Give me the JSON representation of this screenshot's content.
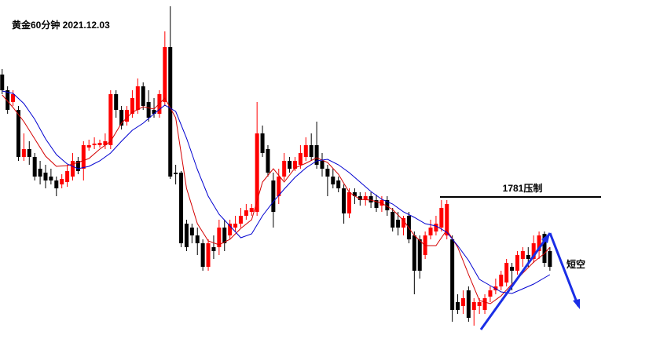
{
  "chart_data": {
    "type": "candlestick",
    "title": "黄金60分钟 2021.12.03",
    "xlim": [
      -0.4,
      121.3
    ],
    "ylim": [
      1762.9,
      1806.1
    ],
    "up_color": "#ff0000",
    "down_color": "#000000",
    "open": [
      1796.6,
      1794.6,
      1793.1,
      1792.1,
      1786.1,
      1787.1,
      1786.1,
      1784.6,
      1784.1,
      1783.6,
      1783.1,
      1782.6,
      1782.9,
      1783.6,
      1785.6,
      1784.6,
      1787.3,
      1787.6,
      1787.6,
      1787.6,
      1787.6,
      1794.1,
      1792.1,
      1790.6,
      1791.6,
      1792.1,
      1795.1,
      1793.1,
      1792.1,
      1791.6,
      1793.1,
      1800.1,
      1784.1,
      1784.1,
      1777.6,
      1777.1,
      1776.1,
      1775.1,
      1772.1,
      1774.6,
      1774.6,
      1777.1,
      1776.1,
      1777.1,
      1777.6,
      1778.6,
      1779.1,
      1779.1,
      1789.1,
      1787.1,
      1783.1,
      1781.1,
      1783.6,
      1785.6,
      1784.6,
      1785.1,
      1786.1,
      1787.6,
      1787.6,
      1785.6,
      1784.6,
      1783.6,
      1783.1,
      1782.1,
      1778.9,
      1781.6,
      1781.1,
      1780.6,
      1781.1,
      1780.6,
      1779.9,
      1780.6,
      1779.1,
      1778.1,
      1777.1,
      1778.6,
      1776.1,
      1775.6,
      1773.6,
      1776.1,
      1776.6,
      1777.1,
      1776.1,
      1775.6,
      1767.6,
      1767.1,
      1769.1,
      1766.6,
      1767.1,
      1766.6,
      1768.3,
      1769.1,
      1769.6,
      1770.1,
      1772.1,
      1771.6,
      1773.1,
      1773.6,
      1773.1,
      1774.1,
      1776.3,
      1774.1
    ],
    "high": [
      1797.3,
      1795.1,
      1794.6,
      1792.6,
      1789.1,
      1788.1,
      1786.6,
      1785.6,
      1785.1,
      1784.6,
      1783.6,
      1783.9,
      1785.1,
      1786.6,
      1786.1,
      1788.1,
      1788.3,
      1788.6,
      1788.3,
      1789.1,
      1794.6,
      1794.6,
      1792.6,
      1792.6,
      1794.6,
      1796.1,
      1795.6,
      1794.6,
      1793.6,
      1794.6,
      1802.1,
      1805.3,
      1785.1,
      1784.3,
      1778.1,
      1777.6,
      1777.1,
      1775.6,
      1775.6,
      1776.1,
      1778.1,
      1778.1,
      1778.1,
      1778.6,
      1779.6,
      1780.1,
      1780.1,
      1793.1,
      1790.1,
      1787.6,
      1784.1,
      1784.6,
      1786.6,
      1786.1,
      1786.1,
      1787.6,
      1788.6,
      1789.1,
      1790.6,
      1786.6,
      1785.1,
      1784.6,
      1783.6,
      1782.6,
      1782.1,
      1782.1,
      1781.6,
      1781.6,
      1781.6,
      1781.3,
      1781.1,
      1781.1,
      1779.6,
      1779.1,
      1778.6,
      1779.1,
      1776.6,
      1776.1,
      1776.6,
      1778.1,
      1778.6,
      1780.6,
      1780.6,
      1776.1,
      1768.6,
      1769.1,
      1769.6,
      1768.1,
      1768.1,
      1768.6,
      1769.6,
      1770.6,
      1771.6,
      1773.1,
      1772.6,
      1774.1,
      1774.6,
      1774.6,
      1776.1,
      1776.6,
      1776.6,
      1774.6
    ],
    "low": [
      1794.1,
      1791.6,
      1792.6,
      1785.6,
      1785.6,
      1785.1,
      1783.1,
      1782.6,
      1782.1,
      1782.6,
      1781.1,
      1782.1,
      1782.3,
      1783.1,
      1783.9,
      1783.1,
      1786.9,
      1787.1,
      1787.3,
      1787.1,
      1787.1,
      1791.1,
      1789.6,
      1790.1,
      1791.1,
      1791.6,
      1792.1,
      1790.6,
      1791.1,
      1791.1,
      1792.6,
      1783.3,
      1782.6,
      1774.6,
      1774.1,
      1775.1,
      1773.6,
      1771.6,
      1771.6,
      1773.1,
      1773.6,
      1774.1,
      1775.6,
      1776.6,
      1777.1,
      1778.1,
      1778.6,
      1778.6,
      1786.1,
      1783.6,
      1777.1,
      1780.1,
      1783.1,
      1784.1,
      1784.3,
      1784.6,
      1785.6,
      1785.6,
      1784.6,
      1783.6,
      1781.1,
      1782.1,
      1781.6,
      1777.6,
      1778.3,
      1780.1,
      1779.9,
      1779.9,
      1779.6,
      1779.1,
      1779.1,
      1778.6,
      1776.6,
      1776.1,
      1776.1,
      1775.1,
      1768.6,
      1770.6,
      1773.1,
      1775.6,
      1776.1,
      1776.6,
      1775.6,
      1765.1,
      1766.1,
      1766.1,
      1765.1,
      1764.6,
      1766.1,
      1766.1,
      1767.6,
      1768.6,
      1769.1,
      1769.6,
      1769.1,
      1771.1,
      1772.1,
      1772.1,
      1772.6,
      1773.1,
      1772.1,
      1771.6
    ],
    "close": [
      1794.6,
      1792.1,
      1794.1,
      1786.1,
      1787.1,
      1786.1,
      1783.6,
      1783.6,
      1783.1,
      1783.1,
      1782.1,
      1783.3,
      1784.3,
      1785.6,
      1784.3,
      1787.6,
      1787.6,
      1787.8,
      1787.9,
      1788.1,
      1794.1,
      1792.1,
      1790.1,
      1792.1,
      1793.6,
      1795.1,
      1792.6,
      1791.1,
      1791.6,
      1794.1,
      1800.1,
      1783.6,
      1783.9,
      1775.1,
      1774.6,
      1776.1,
      1775.1,
      1772.1,
      1775.1,
      1774.1,
      1777.1,
      1775.1,
      1777.6,
      1777.6,
      1778.6,
      1779.3,
      1779.6,
      1789.1,
      1786.6,
      1784.1,
      1779.1,
      1783.6,
      1785.6,
      1784.6,
      1785.6,
      1786.6,
      1787.6,
      1786.1,
      1785.1,
      1784.6,
      1783.6,
      1782.6,
      1782.1,
      1778.9,
      1781.6,
      1781.1,
      1780.6,
      1781.1,
      1780.3,
      1779.6,
      1780.6,
      1779.3,
      1777.1,
      1777.1,
      1778.3,
      1775.6,
      1771.6,
      1771.6,
      1776.1,
      1777.1,
      1777.6,
      1779.6,
      1780.1,
      1766.6,
      1766.6,
      1768.1,
      1765.6,
      1767.6,
      1767.6,
      1768.1,
      1769.1,
      1769.6,
      1771.1,
      1772.6,
      1771.6,
      1773.6,
      1774.1,
      1773.1,
      1775.1,
      1776.1,
      1772.6,
      1772.1
    ],
    "series": [
      {
        "color": "#d40000",
        "x": [
          0,
          2,
          4,
          6,
          8,
          10,
          12,
          14,
          16,
          18,
          20,
          22,
          24,
          26,
          28,
          30,
          32,
          34,
          36,
          38,
          40,
          42,
          44,
          46,
          48,
          50,
          52,
          54,
          56,
          58,
          60,
          62,
          64,
          66,
          68,
          70,
          72,
          74,
          76,
          78,
          80,
          82,
          84,
          86,
          88,
          90,
          92,
          94,
          96,
          98,
          100,
          101
        ],
        "values": [
          1794.0,
          1792.4,
          1790.6,
          1788.4,
          1786.2,
          1784.9,
          1785.0,
          1785.4,
          1785.9,
          1787.1,
          1788.1,
          1790.4,
          1791.8,
          1792.5,
          1792.2,
          1793.6,
          1791.1,
          1782.1,
          1777.6,
          1775.4,
          1774.9,
          1775.6,
          1777.0,
          1778.1,
          1782.9,
          1784.6,
          1782.9,
          1784.7,
          1785.3,
          1786.0,
          1785.4,
          1783.9,
          1781.6,
          1780.7,
          1780.6,
          1780.2,
          1779.4,
          1778.0,
          1776.1,
          1774.8,
          1774.8,
          1776.8,
          1774.6,
          1771.1,
          1767.8,
          1767.4,
          1768.4,
          1769.9,
          1771.3,
          1772.7,
          1773.8,
          1774.6
        ]
      },
      {
        "color": "#0000d0",
        "x": [
          0,
          2,
          4,
          6,
          8,
          10,
          12,
          14,
          16,
          18,
          20,
          22,
          24,
          26,
          28,
          30,
          32,
          34,
          36,
          38,
          40,
          42,
          44,
          46,
          48,
          50,
          52,
          54,
          56,
          58,
          60,
          62,
          64,
          66,
          68,
          70,
          72,
          74,
          76,
          78,
          80,
          82,
          84,
          86,
          88,
          90,
          92,
          94,
          96,
          98,
          100,
          101
        ],
        "values": [
          1794.5,
          1794.2,
          1792.9,
          1790.9,
          1788.4,
          1786.4,
          1785.2,
          1784.6,
          1784.9,
          1785.6,
          1786.6,
          1788.1,
          1789.5,
          1790.4,
          1791.6,
          1792.7,
          1791.9,
          1788.5,
          1784.5,
          1781.1,
          1778.8,
          1777.3,
          1775.8,
          1776.3,
          1778.6,
          1780.4,
          1782.0,
          1783.5,
          1784.7,
          1785.6,
          1785.8,
          1785.1,
          1784.1,
          1782.9,
          1781.7,
          1780.7,
          1780.1,
          1779.1,
          1778.4,
          1777.6,
          1777.3,
          1776.5,
          1774.8,
          1772.9,
          1770.5,
          1769.7,
          1768.9,
          1768.7,
          1769.3,
          1769.9,
          1770.7,
          1771.1
        ]
      }
    ],
    "annotations": [
      {
        "text": "1781压制",
        "value": 1781
      },
      {
        "text": "短空"
      }
    ]
  }
}
